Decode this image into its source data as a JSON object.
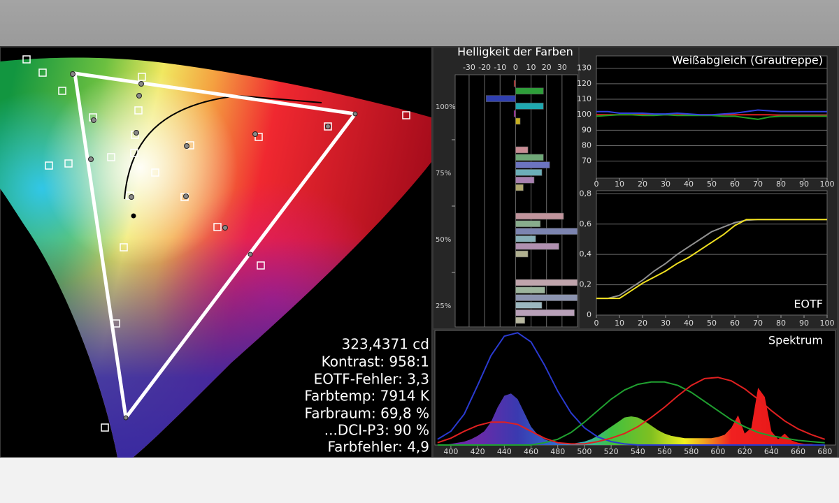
{
  "cie_panel": {
    "stats": [
      "323,4371 cd",
      "Kontrast: 958:1",
      "EOTF-Fehler: 3,3",
      "Farbtemp: 7914 K",
      "Farbraum: 69,8 %",
      "...DCI-P3: 90 %",
      "Farbfehler: 4,9"
    ]
  },
  "chart_data": [
    {
      "type": "bar",
      "title": "Helligkeit der Farben",
      "categories": [
        "100%",
        "75%",
        "50%",
        "25%"
      ],
      "series": [
        {
          "colors": [
            "#c8282a",
            "#c88c94",
            "#c0949c",
            "#c0a4ac"
          ],
          "values": [
            -1,
            8,
            31,
            40
          ]
        },
        {
          "colors": [
            "#2e9e3a",
            "#6fa878",
            "#88ac8c",
            "#9cb49c"
          ],
          "values": [
            18,
            18,
            16,
            19
          ]
        },
        {
          "colors": [
            "#3040b0",
            "#6c74c0",
            "#7c84b0",
            "#8c94b0"
          ],
          "values": [
            -19,
            22,
            40,
            40
          ]
        },
        {
          "colors": [
            "#20a8b0",
            "#6caeb8",
            "#88b0b8",
            "#9cb8c0"
          ],
          "values": [
            18,
            17,
            13,
            17
          ]
        },
        {
          "colors": [
            "#b020b0",
            "#a880b0",
            "#b090b0",
            "#b8a0b8"
          ],
          "values": [
            -1,
            12,
            28,
            38
          ]
        },
        {
          "colors": [
            "#c8b020",
            "#b0a870",
            "#b0b090",
            "#b8b8a0"
          ],
          "values": [
            3,
            5,
            8,
            6
          ]
        }
      ],
      "xlim": [
        -39,
        40
      ],
      "xticks": [
        -30,
        -20,
        -10,
        0,
        10,
        20,
        30
      ],
      "grid": true
    },
    {
      "type": "line",
      "title": "Weißabgleich (Grautreppe)",
      "x": [
        0,
        5,
        10,
        15,
        20,
        25,
        30,
        35,
        40,
        45,
        50,
        55,
        60,
        65,
        70,
        75,
        80,
        85,
        90,
        95,
        100
      ],
      "series": [
        {
          "color": "#e02020",
          "values": [
            100,
            100,
            100,
            100,
            100.5,
            100,
            100,
            100,
            100,
            100,
            100,
            100,
            100,
            100,
            100,
            100,
            99.5,
            99.5,
            99.5,
            99.5,
            99.5
          ]
        },
        {
          "color": "#20a020",
          "values": [
            99,
            99.5,
            100,
            100,
            99.5,
            99.5,
            100,
            99.5,
            99.5,
            99.5,
            99.5,
            99,
            99,
            98,
            97,
            98.5,
            99,
            99,
            99,
            99,
            99
          ]
        },
        {
          "color": "#3040e0",
          "values": [
            102,
            102,
            101,
            101,
            101,
            100.5,
            100.5,
            101,
            100.5,
            100,
            100,
            100.5,
            101,
            102,
            103,
            102.5,
            102,
            102,
            102,
            102,
            102
          ]
        }
      ],
      "xlim": [
        0,
        100
      ],
      "ylim": [
        59,
        138
      ],
      "xticks": [
        0,
        10,
        20,
        30,
        40,
        50,
        60,
        70,
        80,
        90,
        100
      ],
      "yticks": [
        70,
        80,
        90,
        100,
        110,
        120,
        130
      ],
      "grid": true
    },
    {
      "type": "line",
      "title": "EOTF",
      "x": [
        0,
        5,
        10,
        15,
        20,
        25,
        30,
        35,
        40,
        45,
        50,
        55,
        60,
        65,
        70,
        75,
        80,
        85,
        90,
        95,
        100
      ],
      "series": [
        {
          "color": "#909090",
          "values": [
            0.11,
            0.11,
            0.13,
            0.18,
            0.23,
            0.29,
            0.34,
            0.4,
            0.45,
            0.5,
            0.55,
            0.58,
            0.61,
            0.625,
            0.63,
            0.63,
            0.63,
            0.63,
            0.63,
            0.63,
            0.63
          ]
        },
        {
          "color": "#f0e020",
          "values": [
            0.11,
            0.11,
            0.11,
            0.16,
            0.21,
            0.25,
            0.29,
            0.34,
            0.38,
            0.43,
            0.48,
            0.53,
            0.59,
            0.63,
            0.63,
            0.63,
            0.63,
            0.63,
            0.63,
            0.63,
            0.63
          ]
        }
      ],
      "xlim": [
        0,
        100
      ],
      "ylim": [
        0,
        0.82
      ],
      "xticks": [
        0,
        10,
        20,
        30,
        40,
        50,
        60,
        70,
        80,
        90,
        100
      ],
      "yticks": [
        0,
        {
          "value": 0.2,
          "label": "0,2"
        },
        {
          "value": 0.4,
          "label": "0,4"
        },
        {
          "value": 0.6,
          "label": "0,6"
        },
        {
          "value": 0.8,
          "label": "0,8"
        }
      ],
      "grid": true
    },
    {
      "type": "line",
      "title": "Spektrum",
      "series": [
        {
          "area": true,
          "x": [
            390,
            395,
            400,
            405,
            410,
            415,
            420,
            425,
            430,
            435,
            440,
            445,
            450,
            455,
            460,
            465,
            470,
            475,
            480,
            485,
            490,
            495,
            500,
            505,
            510,
            515,
            520,
            525,
            530,
            535,
            540,
            545,
            550,
            555,
            560,
            565,
            570,
            575,
            580,
            585,
            590,
            595,
            600,
            605,
            610,
            615,
            620,
            625,
            630,
            635,
            640,
            645,
            650,
            655,
            660,
            665,
            670,
            675,
            680,
            685
          ],
          "values": [
            0,
            0,
            0.01,
            0.02,
            0.03,
            0.05,
            0.08,
            0.12,
            0.2,
            0.33,
            0.43,
            0.45,
            0.4,
            0.28,
            0.16,
            0.09,
            0.05,
            0.03,
            0.02,
            0.01,
            0.01,
            0.02,
            0.03,
            0.05,
            0.08,
            0.12,
            0.16,
            0.2,
            0.24,
            0.25,
            0.24,
            0.21,
            0.17,
            0.13,
            0.1,
            0.08,
            0.07,
            0.06,
            0.06,
            0.06,
            0.06,
            0.06,
            0.07,
            0.09,
            0.15,
            0.26,
            0.1,
            0.15,
            0.5,
            0.42,
            0.12,
            0.05,
            0.1,
            0.04,
            0.02,
            0.01,
            0.01,
            0,
            0,
            0
          ]
        },
        {
          "color": "#2a3ad0",
          "x": [
            390,
            400,
            410,
            420,
            430,
            440,
            450,
            460,
            470,
            480,
            490,
            500,
            510,
            520,
            530,
            540,
            550,
            560,
            570,
            580,
            590,
            600,
            610,
            620,
            630,
            640,
            650,
            660,
            670,
            680
          ],
          "values": [
            0.05,
            0.12,
            0.27,
            0.52,
            0.78,
            0.95,
            0.98,
            0.9,
            0.7,
            0.47,
            0.28,
            0.15,
            0.07,
            0.03,
            0.01,
            0,
            0,
            0,
            0,
            0,
            0,
            0,
            0,
            0,
            0,
            0,
            0,
            0,
            0,
            0
          ]
        },
        {
          "color": "#20a030",
          "x": [
            390,
            400,
            410,
            420,
            430,
            440,
            450,
            460,
            470,
            480,
            490,
            500,
            510,
            520,
            530,
            540,
            550,
            560,
            570,
            580,
            590,
            600,
            610,
            620,
            630,
            640,
            650,
            660,
            670,
            680
          ],
          "values": [
            0,
            0,
            0,
            0,
            0,
            0,
            0,
            0,
            0.02,
            0.05,
            0.11,
            0.2,
            0.3,
            0.4,
            0.48,
            0.53,
            0.55,
            0.55,
            0.52,
            0.46,
            0.38,
            0.3,
            0.22,
            0.16,
            0.11,
            0.08,
            0.06,
            0.04,
            0.03,
            0.02
          ]
        },
        {
          "color": "#e02020",
          "x": [
            390,
            400,
            410,
            420,
            430,
            440,
            450,
            460,
            470,
            480,
            490,
            500,
            510,
            520,
            530,
            540,
            550,
            560,
            570,
            580,
            590,
            600,
            610,
            620,
            630,
            640,
            650,
            660,
            670,
            680
          ],
          "values": [
            0.02,
            0.06,
            0.12,
            0.17,
            0.2,
            0.2,
            0.18,
            0.12,
            0.06,
            0.02,
            0.01,
            0.01,
            0.03,
            0.06,
            0.1,
            0.16,
            0.24,
            0.33,
            0.43,
            0.52,
            0.58,
            0.59,
            0.56,
            0.49,
            0.4,
            0.3,
            0.21,
            0.14,
            0.09,
            0.05
          ]
        }
      ],
      "xlim": [
        388,
        688
      ],
      "ylim": [
        0,
        1
      ],
      "xticks": [
        400,
        420,
        440,
        460,
        480,
        500,
        520,
        540,
        560,
        580,
        600,
        620,
        640,
        660,
        680
      ],
      "grid": false
    }
  ]
}
